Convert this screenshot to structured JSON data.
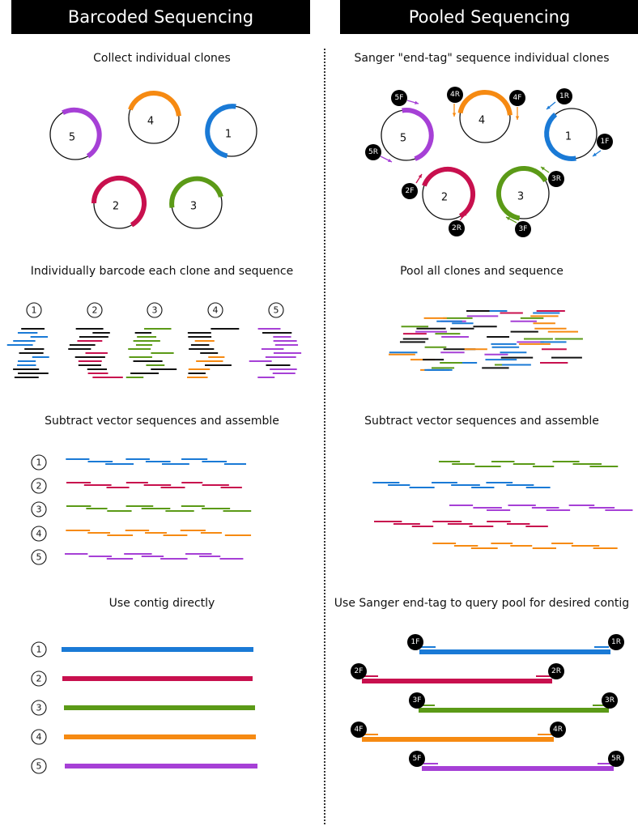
{
  "headers": {
    "left": "Barcoded Sequencing",
    "right": "Pooled Sequencing"
  },
  "colors": {
    "1": "#1a7ad6",
    "2": "#c8104e",
    "3": "#5b9a17",
    "4": "#f68a12",
    "5": "#a640d6",
    "black": "#111111"
  },
  "left": {
    "step1": "Collect individual clones",
    "step2": "Individually barcode each clone and sequence",
    "step3": "Subtract vector sequences and assemble",
    "step4": "Use contig directly",
    "clone_labels": [
      "5",
      "4",
      "1",
      "2",
      "3"
    ],
    "barcode_labels": [
      "1",
      "2",
      "3",
      "4",
      "5"
    ],
    "assembly_labels": [
      "1",
      "2",
      "3",
      "4",
      "5"
    ],
    "contig_labels": [
      "1",
      "2",
      "3",
      "4",
      "5"
    ]
  },
  "right": {
    "step1": "Sanger \"end-tag\" sequence individual clones",
    "step2": "Pool all clones and sequence",
    "step3": "Subtract vector sequences and assemble",
    "step4": "Use Sanger end-tag to query pool for desired contig",
    "clone_labels": [
      "5",
      "4",
      "1",
      "2",
      "3"
    ],
    "tags": {
      "5F": "5F",
      "5R": "5R",
      "4R": "4R",
      "4F": "4F",
      "1R": "1R",
      "1F": "1F",
      "2F": "2F",
      "2R": "2R",
      "3R": "3R",
      "3F": "3F"
    },
    "contig_tags": [
      [
        "1F",
        "1R"
      ],
      [
        "2F",
        "2R"
      ],
      [
        "3F",
        "3R"
      ],
      [
        "4F",
        "4R"
      ],
      [
        "5F",
        "5R"
      ]
    ]
  }
}
